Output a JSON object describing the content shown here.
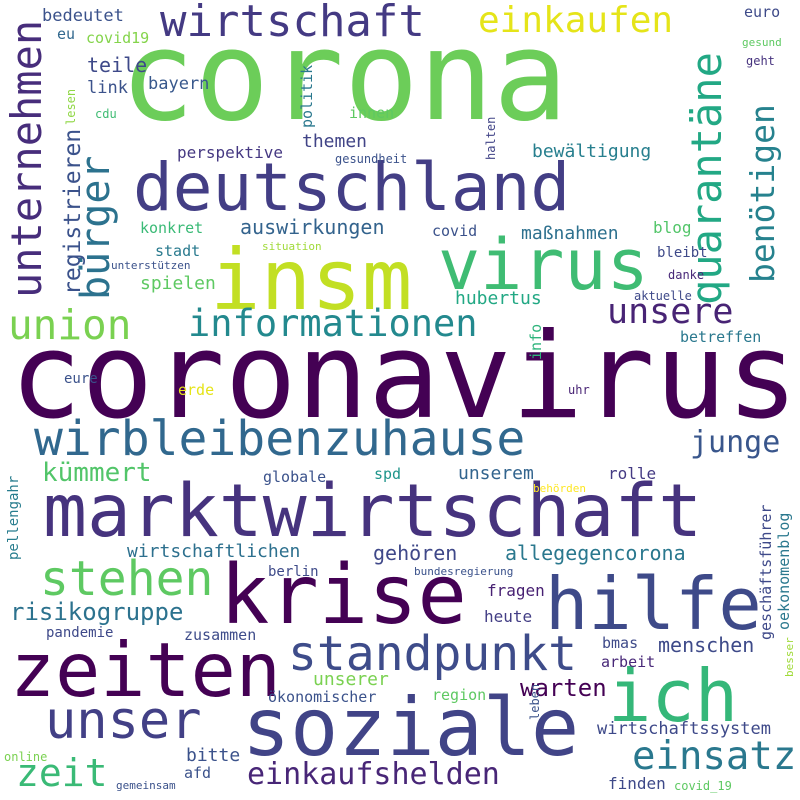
{
  "words": [
    {
      "id": "corona",
      "text": "corona",
      "color": "#6ccd59"
    },
    {
      "id": "coronavirus",
      "text": "coronavirus",
      "color": "#440154"
    },
    {
      "id": "deutschland",
      "text": "deutschland",
      "color": "#433e85"
    },
    {
      "id": "insm",
      "text": "insm",
      "color": "#c2df23"
    },
    {
      "id": "virus",
      "text": "virus",
      "color": "#3fbc73"
    },
    {
      "id": "wirtschaft",
      "text": "wirtschaft",
      "color": "#443a83"
    },
    {
      "id": "einkaufen",
      "text": "einkaufen",
      "color": "#e5e419"
    },
    {
      "id": "unternehmen",
      "text": "unternehmen",
      "color": "#472d7b"
    },
    {
      "id": "buerger",
      "text": "bürger",
      "color": "#2c728e"
    },
    {
      "id": "quarantaene",
      "text": "quarantäne",
      "color": "#22a884"
    },
    {
      "id": "benoetigen",
      "text": "benötigen",
      "color": "#26828e"
    },
    {
      "id": "registrieren",
      "text": "registrieren",
      "color": "#3b528b"
    },
    {
      "id": "union",
      "text": "union",
      "color": "#7ad151"
    },
    {
      "id": "informationen",
      "text": "informationen",
      "color": "#23898e"
    },
    {
      "id": "unsere",
      "text": "unsere",
      "color": "#482475"
    },
    {
      "id": "wirbleibenzuhause",
      "text": "wirbleibenzuhause",
      "color": "#31688e"
    },
    {
      "id": "junge",
      "text": "junge",
      "color": "#39568c"
    },
    {
      "id": "marktwirtschaft",
      "text": "marktwirtschaft",
      "color": "#46337e"
    },
    {
      "id": "kuemmert",
      "text": "kümmert",
      "color": "#52c569"
    },
    {
      "id": "stehen",
      "text": "stehen",
      "color": "#5ec962"
    },
    {
      "id": "krise",
      "text": "krise",
      "color": "#440154"
    },
    {
      "id": "hilfe",
      "text": "hilfe",
      "color": "#3e4a89"
    },
    {
      "id": "standpunkt",
      "text": "standpunkt",
      "color": "#3e4c8a"
    },
    {
      "id": "zeiten",
      "text": "zeiten",
      "color": "#440154"
    },
    {
      "id": "ich",
      "text": "ich",
      "color": "#35b779"
    },
    {
      "id": "unser",
      "text": "unser",
      "color": "#424086"
    },
    {
      "id": "soziale",
      "text": "soziale",
      "color": "#414487"
    },
    {
      "id": "einsatz",
      "text": "einsatz",
      "color": "#2a788e"
    },
    {
      "id": "zeit",
      "text": "zeit",
      "color": "#3aba76"
    },
    {
      "id": "einkaufshelden",
      "text": "einkaufshelden",
      "color": "#482677"
    },
    {
      "id": "bedeutet",
      "text": "bedeutet",
      "color": "#3b528b"
    },
    {
      "id": "eu",
      "text": "eu",
      "color": "#31688e"
    },
    {
      "id": "covid19",
      "text": "covid19",
      "color": "#84d44b"
    },
    {
      "id": "teile",
      "text": "teile",
      "color": "#3e4989"
    },
    {
      "id": "link",
      "text": "link",
      "color": "#3b528b"
    },
    {
      "id": "bayern",
      "text": "bayern",
      "color": "#38588c"
    },
    {
      "id": "politik",
      "text": "politik",
      "color": "#2a788e"
    },
    {
      "id": "innen",
      "text": "innen",
      "color": "#5ec962"
    },
    {
      "id": "lesen",
      "text": "lesen",
      "color": "#8fd744"
    },
    {
      "id": "cdu",
      "text": "cdu",
      "color": "#3fbc73"
    },
    {
      "id": "themen",
      "text": "themen",
      "color": "#414487"
    },
    {
      "id": "perspektive",
      "text": "perspektive",
      "color": "#453882"
    },
    {
      "id": "gesundheit",
      "text": "gesundheit",
      "color": "#3b528b"
    },
    {
      "id": "halten",
      "text": "halten",
      "color": "#414487"
    },
    {
      "id": "bewaeltigung",
      "text": "bewältigung",
      "color": "#277f8e"
    },
    {
      "id": "euro",
      "text": "euro",
      "color": "#3e4a89"
    },
    {
      "id": "gesund",
      "text": "gesund",
      "color": "#5ec962"
    },
    {
      "id": "geht",
      "text": "geht",
      "color": "#46327e"
    },
    {
      "id": "konkret",
      "text": "konkret",
      "color": "#3aba76"
    },
    {
      "id": "auswirkungen",
      "text": "auswirkungen",
      "color": "#33638d"
    },
    {
      "id": "covid",
      "text": "covid",
      "color": "#3b528b"
    },
    {
      "id": "massnahmen",
      "text": "maßnahmen",
      "color": "#2d708e"
    },
    {
      "id": "blog",
      "text": "blog",
      "color": "#52c569"
    },
    {
      "id": "stadt",
      "text": "stadt",
      "color": "#297a8e"
    },
    {
      "id": "situation",
      "text": "situation",
      "color": "#a0da39"
    },
    {
      "id": "bleibt",
      "text": "bleibt",
      "color": "#3e4989"
    },
    {
      "id": "unterstuetzen",
      "text": "unterstützen",
      "color": "#3b528b"
    },
    {
      "id": "danke",
      "text": "danke",
      "color": "#482878"
    },
    {
      "id": "spielen",
      "text": "spielen",
      "color": "#5ec962"
    },
    {
      "id": "aktuelle",
      "text": "aktuelle",
      "color": "#3e4989"
    },
    {
      "id": "hubertus",
      "text": "hubertus",
      "color": "#22a884"
    },
    {
      "id": "info",
      "text": "info",
      "color": "#2fb47c"
    },
    {
      "id": "betreffen",
      "text": "betreffen",
      "color": "#2a788e"
    },
    {
      "id": "eure",
      "text": "eure",
      "color": "#3b528b"
    },
    {
      "id": "erde",
      "text": "erde",
      "color": "#e5e419"
    },
    {
      "id": "uhr",
      "text": "uhr",
      "color": "#482475"
    },
    {
      "id": "globale",
      "text": "globale",
      "color": "#3b528b"
    },
    {
      "id": "spd",
      "text": "spd",
      "color": "#1f958b"
    },
    {
      "id": "unserem",
      "text": "unserem",
      "color": "#32648e"
    },
    {
      "id": "rolle",
      "text": "rolle",
      "color": "#443a83"
    },
    {
      "id": "pellengahr",
      "text": "pellengahr",
      "color": "#287d8e"
    },
    {
      "id": "behoerden",
      "text": "behörden",
      "color": "#fde725"
    },
    {
      "id": "geschaeftsfuehrer",
      "text": "geschäftsführer",
      "color": "#3e4989"
    },
    {
      "id": "oekonomenblog",
      "text": "oekonomenblog",
      "color": "#2a788e"
    },
    {
      "id": "wirtschaftlichen",
      "text": "wirtschaftlichen",
      "color": "#2d708e"
    },
    {
      "id": "gehoeren",
      "text": "gehören",
      "color": "#3f4889"
    },
    {
      "id": "allegegencorona",
      "text": "allegegencorona",
      "color": "#2a788e"
    },
    {
      "id": "berlin",
      "text": "berlin",
      "color": "#3e4a89"
    },
    {
      "id": "bundesregierung",
      "text": "bundesregierung",
      "color": "#3b528b"
    },
    {
      "id": "risikogruppe",
      "text": "risikogruppe",
      "color": "#2c728e"
    },
    {
      "id": "fragen",
      "text": "fragen",
      "color": "#482173"
    },
    {
      "id": "heute",
      "text": "heute",
      "color": "#433e85"
    },
    {
      "id": "pandemie",
      "text": "pandemie",
      "color": "#3e4989"
    },
    {
      "id": "zusammen",
      "text": "zusammen",
      "color": "#3e4c8a"
    },
    {
      "id": "menschen",
      "text": "menschen",
      "color": "#3e4a89"
    },
    {
      "id": "bmas",
      "text": "bmas",
      "color": "#3e4a89"
    },
    {
      "id": "arbeit",
      "text": "arbeit",
      "color": "#482878"
    },
    {
      "id": "besser",
      "text": "besser",
      "color": "#a0da39"
    },
    {
      "id": "warten",
      "text": "warten",
      "color": "#440154"
    },
    {
      "id": "unserer",
      "text": "unserer",
      "color": "#7ad151"
    },
    {
      "id": "oekonomischer",
      "text": "ökonomischer",
      "color": "#3b528b"
    },
    {
      "id": "region",
      "text": "region",
      "color": "#5ec962"
    },
    {
      "id": "leben",
      "text": "leben",
      "color": "#3b528b"
    },
    {
      "id": "wirtschaftssystem",
      "text": "wirtschaftssystem",
      "color": "#3e4989"
    },
    {
      "id": "bitte",
      "text": "bitte",
      "color": "#3b528b"
    },
    {
      "id": "online",
      "text": "online",
      "color": "#7ad151"
    },
    {
      "id": "afd",
      "text": "afd",
      "color": "#3b528b"
    },
    {
      "id": "gemeinsam",
      "text": "gemeinsam",
      "color": "#3b528b"
    },
    {
      "id": "finden",
      "text": "finden",
      "color": "#3e4989"
    },
    {
      "id": "covid_19",
      "text": "covid_19",
      "color": "#5ec962"
    }
  ]
}
